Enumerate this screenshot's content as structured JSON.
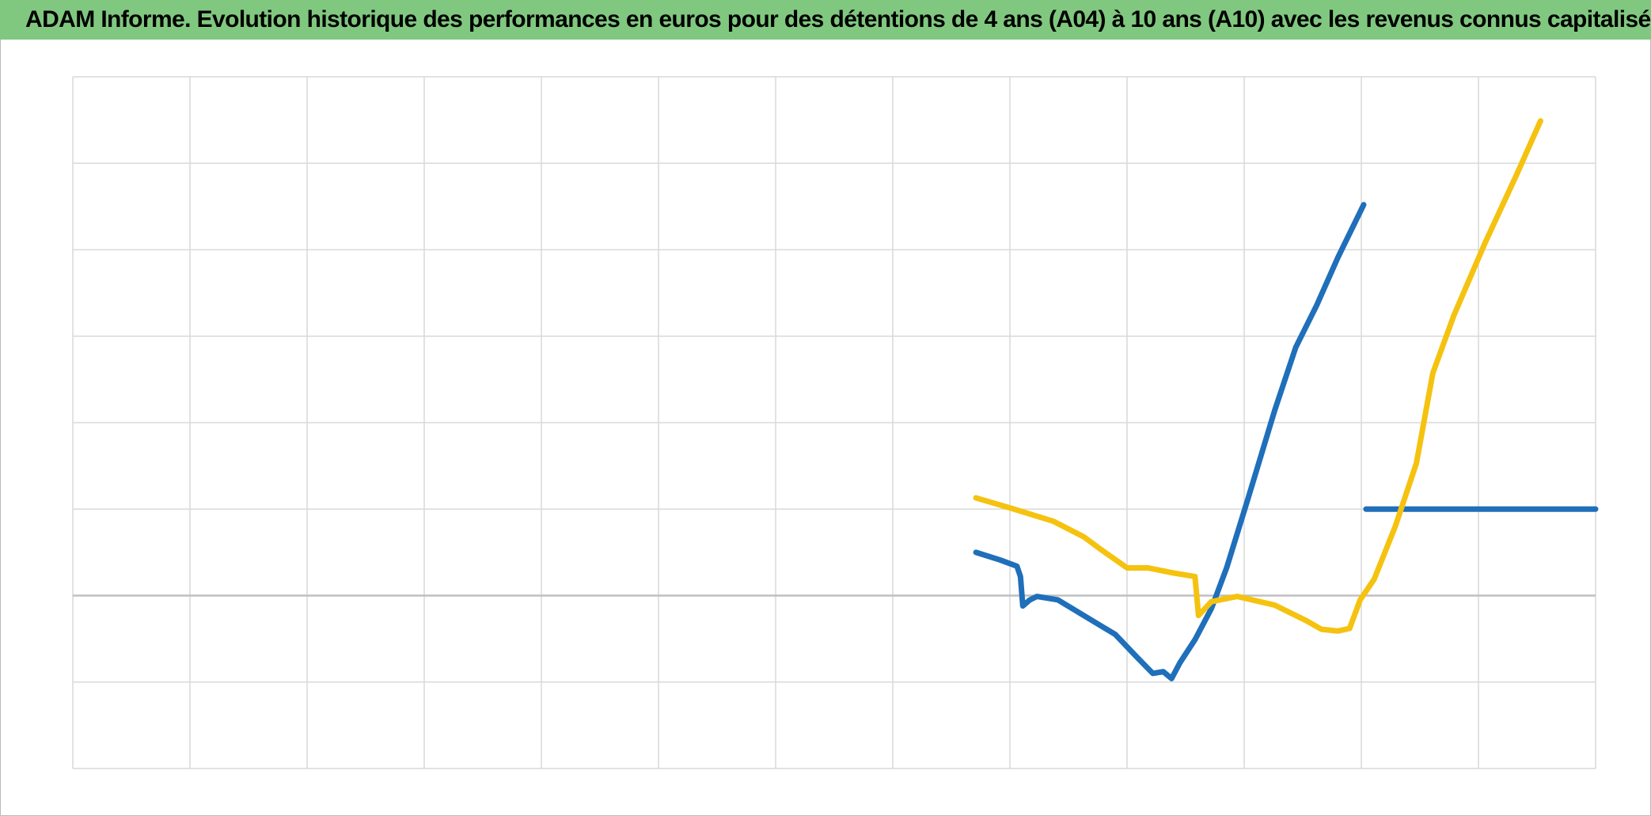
{
  "chart_data": {
    "type": "line",
    "title": "ADAM Informe. Evolution historique des performances en euros pour des détentions de 4 ans (A04) à 10 ans (A10) avec les revenus connus capitalisés",
    "xlim": [
      0,
      13
    ],
    "xticks": [
      0,
      1,
      2,
      3,
      4,
      5,
      6,
      7,
      8,
      9,
      10,
      11,
      12,
      13
    ],
    "ylim": [
      -2,
      6
    ],
    "yticks": [
      -2,
      -1,
      0,
      1,
      2,
      3,
      4,
      5,
      6
    ],
    "grid": true,
    "series": [
      {
        "color": "#1f6fba",
        "x": [
          7.71,
          7.92,
          8.06,
          8.09,
          8.11,
          8.17,
          8.23,
          8.41,
          8.63,
          8.9,
          9.09,
          9.22,
          9.31,
          9.38,
          9.45,
          9.58,
          9.72,
          9.85,
          10.03,
          10.26,
          10.44,
          10.62,
          10.8,
          11.02,
          11.03,
          11.04,
          13.0
        ],
        "values": [
          0.5,
          0.41,
          0.34,
          0.22,
          -0.12,
          -0.05,
          -0.01,
          -0.05,
          -0.23,
          -0.45,
          -0.72,
          -0.9,
          -0.88,
          -0.96,
          -0.78,
          -0.51,
          -0.15,
          0.32,
          1.11,
          2.14,
          2.87,
          3.36,
          3.91,
          4.52,
          null,
          1.0,
          1.0
        ]
      },
      {
        "color": "#f5c20f",
        "x": [
          7.71,
          8.01,
          8.37,
          8.63,
          8.77,
          9.0,
          9.18,
          9.4,
          9.58,
          9.61,
          9.72,
          9.94,
          10.26,
          10.53,
          10.66,
          10.8,
          10.9,
          10.99,
          11.11,
          11.29,
          11.47,
          11.61,
          11.79,
          12.06,
          12.33,
          12.53
        ],
        "values": [
          1.13,
          1.01,
          0.86,
          0.68,
          0.54,
          0.32,
          0.32,
          0.26,
          0.22,
          -0.23,
          -0.07,
          -0.01,
          -0.11,
          -0.29,
          -0.39,
          -0.41,
          -0.38,
          -0.05,
          0.19,
          0.8,
          1.53,
          2.57,
          3.24,
          4.09,
          4.88,
          5.49
        ]
      }
    ]
  }
}
